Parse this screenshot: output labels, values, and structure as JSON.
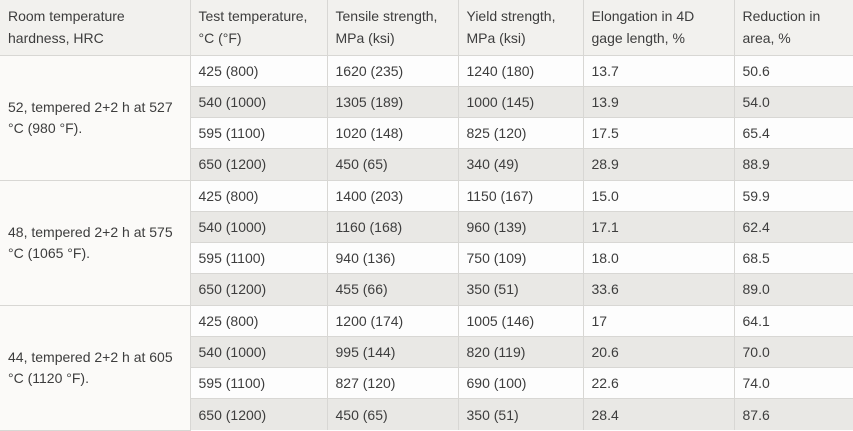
{
  "colors": {
    "border": "#d8d7d4",
    "header_bg": "#f2f1ee",
    "stripe_bg": "#e9e8e5",
    "white_bg": "#fdfdfd",
    "group_bg": "#fbfaf8",
    "text": "#3d3d3d"
  },
  "table": {
    "columns": [
      "Room temperature hardness, HRC",
      "Test temperature, °C (°F)",
      "Tensile strength, MPa (ksi)",
      "Yield strength, MPa (ksi)",
      "Elongation in 4D gage length, %",
      "Reduction in area, %"
    ],
    "groups": [
      {
        "hardness": "52, tempered 2+2 h at 527 °C (980 °F).",
        "rows": [
          [
            "425 (800)",
            "1620 (235)",
            "1240 (180)",
            "13.7",
            "50.6"
          ],
          [
            "540 (1000)",
            "1305 (189)",
            "1000 (145)",
            "13.9",
            "54.0"
          ],
          [
            "595 (1100)",
            "1020 (148)",
            "825 (120)",
            "17.5",
            "65.4"
          ],
          [
            "650 (1200)",
            "450 (65)",
            "340 (49)",
            "28.9",
            "88.9"
          ]
        ]
      },
      {
        "hardness": "48, tempered 2+2 h at 575 °C (1065 °F).",
        "rows": [
          [
            "425 (800)",
            "1400 (203)",
            "1150 (167)",
            "15.0",
            "59.9"
          ],
          [
            "540 (1000)",
            "1160 (168)",
            "960 (139)",
            "17.1",
            "62.4"
          ],
          [
            "595 (1100)",
            "940 (136)",
            "750 (109)",
            "18.0",
            "68.5"
          ],
          [
            "650 (1200)",
            "455 (66)",
            "350 (51)",
            "33.6",
            "89.0"
          ]
        ]
      },
      {
        "hardness": "44, tempered 2+2 h at 605 °C (1120 °F).",
        "rows": [
          [
            "425 (800)",
            "1200 (174)",
            "1005 (146)",
            "17",
            "64.1"
          ],
          [
            "540 (1000)",
            "995 (144)",
            "820 (119)",
            "20.6",
            "70.0"
          ],
          [
            "595 (1100)",
            "827 (120)",
            "690 (100)",
            "22.6",
            "74.0"
          ],
          [
            "650 (1200)",
            "450 (65)",
            "350 (51)",
            "28.4",
            "87.6"
          ]
        ]
      }
    ]
  }
}
